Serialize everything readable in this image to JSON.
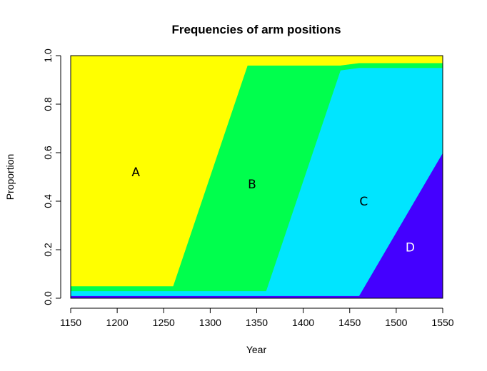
{
  "chart_data": {
    "type": "area",
    "title": "Frequencies of arm positions",
    "xlabel": "Year",
    "ylabel": "Proportion",
    "xlim": [
      1150,
      1550
    ],
    "ylim": [
      0,
      1
    ],
    "grid": false,
    "xticks": [
      "1150",
      "1200",
      "1250",
      "1300",
      "1350",
      "1400",
      "1450",
      "1500",
      "1550"
    ],
    "yticks": [
      "0.0",
      "0.2",
      "0.4",
      "0.6",
      "0.8",
      "1.0"
    ],
    "x": [
      1150,
      1260,
      1340,
      1360,
      1440,
      1460,
      1550
    ],
    "series": [
      {
        "name": "D",
        "color": "#4400FF",
        "label_color": "#ffffff",
        "label_pos": [
          1515,
          0.21
        ],
        "values": [
          0.01,
          0.01,
          0.01,
          0.01,
          0.01,
          0.01,
          0.6
        ]
      },
      {
        "name": "C",
        "color": "#00E5FF",
        "label_color": "#000000",
        "label_pos": [
          1465,
          0.4
        ],
        "values": [
          0.02,
          0.02,
          0.02,
          0.02,
          0.93,
          0.94,
          0.35
        ]
      },
      {
        "name": "B",
        "color": "#00FF4D",
        "label_color": "#000000",
        "label_pos": [
          1345,
          0.47
        ],
        "values": [
          0.02,
          0.02,
          0.93,
          0.93,
          0.02,
          0.02,
          0.02
        ]
      },
      {
        "name": "A",
        "color": "#FFFF00",
        "label_color": "#000000",
        "label_pos": [
          1220,
          0.52
        ],
        "values": [
          0.95,
          0.95,
          0.04,
          0.04,
          0.04,
          0.03,
          0.03
        ]
      }
    ]
  }
}
